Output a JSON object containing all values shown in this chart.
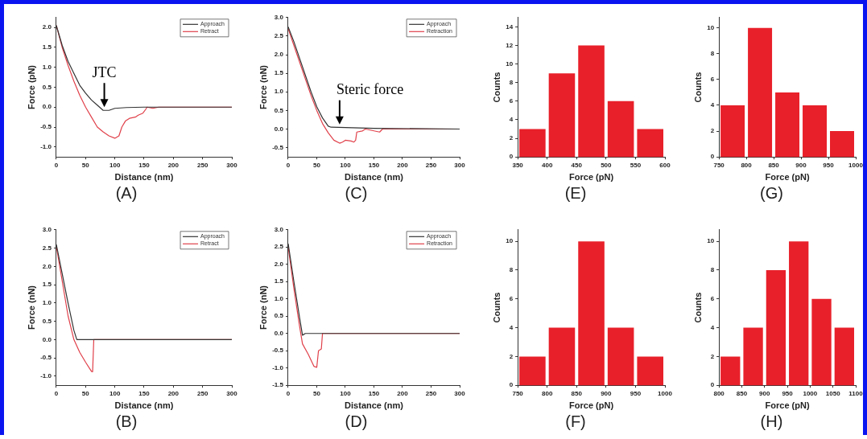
{
  "chart_data": [
    {
      "type": "line",
      "xlabel": "Distance (nm)",
      "ylabel": "Force (pN)",
      "xlim": [
        0,
        300
      ],
      "xticks": [
        0,
        50,
        100,
        150,
        200,
        250,
        300
      ],
      "ylim": [
        -1.25,
        2.25
      ],
      "yticks": [
        {
          "value": -1,
          "label": "-1.0"
        },
        -0.5,
        {
          "value": 0,
          "label": "0.0"
        },
        0.5,
        {
          "value": 1,
          "label": "1.0"
        },
        1.5,
        {
          "value": 2,
          "label": "2.0"
        }
      ],
      "legend": "top right",
      "annotations": [
        "(A)",
        {
          "text": "JTC",
          "x": 82,
          "y": -0.08
        }
      ],
      "series": [
        {
          "name": "Approach",
          "color": "#333333",
          "x": [
            0,
            10,
            20,
            30,
            40,
            50,
            60,
            70,
            80,
            90,
            100,
            120,
            150,
            300
          ],
          "values": [
            2.05,
            1.55,
            1.15,
            0.85,
            0.55,
            0.35,
            0.18,
            0.05,
            -0.08,
            -0.08,
            -0.03,
            -0.01,
            0,
            0
          ]
        },
        {
          "name": "Retract",
          "color": "#e0404a",
          "x": [
            0,
            10,
            20,
            30,
            40,
            50,
            60,
            70,
            80,
            90,
            100,
            107,
            112,
            118,
            125,
            135,
            140,
            148,
            153,
            155,
            165,
            175,
            300
          ],
          "values": [
            2.05,
            1.5,
            1.05,
            0.65,
            0.3,
            0.0,
            -0.25,
            -0.5,
            -0.62,
            -0.72,
            -0.78,
            -0.72,
            -0.5,
            -0.35,
            -0.28,
            -0.25,
            -0.2,
            -0.15,
            -0.05,
            0,
            -0.03,
            0,
            0
          ]
        }
      ]
    },
    {
      "type": "line",
      "xlabel": "Distance (nm)",
      "ylabel": "Force (nN)",
      "xlim": [
        0,
        300
      ],
      "xticks": [
        0,
        50,
        100,
        150,
        200,
        250,
        300
      ],
      "ylim": [
        -0.75,
        3.0
      ],
      "yticks": [
        -0.5,
        {
          "value": 0,
          "label": "0.0"
        },
        0.5,
        {
          "value": 1,
          "label": "1.0"
        },
        1.5,
        {
          "value": 2,
          "label": "2.0"
        },
        2.5,
        {
          "value": 3,
          "label": "3.0"
        }
      ],
      "legend": "top right",
      "annotations": [
        "(C)",
        {
          "text": "Steric force",
          "x": 90,
          "y": 0.04
        }
      ],
      "series": [
        {
          "name": "Approach",
          "color": "#333333",
          "x": [
            0,
            10,
            20,
            30,
            40,
            50,
            60,
            70,
            75,
            100,
            150,
            300
          ],
          "values": [
            2.75,
            2.35,
            1.9,
            1.45,
            1.0,
            0.6,
            0.3,
            0.08,
            0.05,
            0.04,
            0.02,
            0
          ]
        },
        {
          "name": "Retraction",
          "color": "#e0404a",
          "x": [
            0,
            10,
            20,
            30,
            40,
            50,
            60,
            70,
            80,
            90,
            95,
            100,
            110,
            115,
            118,
            120,
            130,
            135,
            160,
            165,
            300
          ],
          "values": [
            2.7,
            2.25,
            1.8,
            1.35,
            0.9,
            0.5,
            0.15,
            -0.1,
            -0.3,
            -0.38,
            -0.35,
            -0.3,
            -0.32,
            -0.35,
            -0.3,
            -0.08,
            -0.05,
            0,
            -0.08,
            0,
            0
          ]
        }
      ]
    },
    {
      "type": "histogram",
      "xlabel": "Force (pN)",
      "ylabel": "Counts",
      "xlim": [
        350,
        600
      ],
      "xticks": [
        350,
        400,
        450,
        500,
        550,
        600
      ],
      "ylim": [
        0,
        15
      ],
      "yticks": [
        0,
        2,
        4,
        6,
        8,
        10,
        12,
        14
      ],
      "color": "#e8202a",
      "bins": [
        350,
        400,
        450,
        500,
        550,
        600
      ],
      "values": [
        3,
        9,
        12,
        6,
        3
      ],
      "annotations": [
        "(E)"
      ]
    },
    {
      "type": "histogram",
      "xlabel": "Force (pN)",
      "ylabel": "Counts",
      "xlim": [
        750,
        1000
      ],
      "xticks": [
        750,
        800,
        850,
        900,
        950,
        1000
      ],
      "ylim": [
        0,
        10.8
      ],
      "yticks": [
        0,
        2,
        4,
        6,
        8,
        10
      ],
      "color": "#e8202a",
      "bins": [
        750,
        800,
        850,
        900,
        950,
        1000
      ],
      "values": [
        4,
        10,
        5,
        4,
        2
      ],
      "annotations": [
        "(G)"
      ]
    },
    {
      "type": "line",
      "xlabel": "Distance (nm)",
      "ylabel": "Force (nN)",
      "xlim": [
        0,
        300
      ],
      "xticks": [
        0,
        50,
        100,
        150,
        200,
        250,
        300
      ],
      "ylim": [
        -1.25,
        3.0
      ],
      "yticks": [
        {
          "value": -1,
          "label": "-1.0"
        },
        -0.5,
        {
          "value": 0,
          "label": "0.0"
        },
        0.5,
        {
          "value": 1,
          "label": "1.0"
        },
        1.5,
        {
          "value": 2,
          "label": "2.0"
        },
        2.5,
        {
          "value": 3,
          "label": "3.0"
        }
      ],
      "legend": "top right",
      "annotations": [
        "(B)"
      ],
      "series": [
        {
          "name": "Approach",
          "color": "#333333",
          "x": [
            0,
            10,
            20,
            30,
            35,
            300
          ],
          "values": [
            2.6,
            1.8,
            1.0,
            0.25,
            0,
            0
          ]
        },
        {
          "name": "Retract",
          "color": "#e0404a",
          "x": [
            0,
            10,
            20,
            30,
            40,
            50,
            60,
            62,
            64,
            300
          ],
          "values": [
            2.55,
            1.6,
            0.65,
            0.0,
            -0.35,
            -0.62,
            -0.87,
            -0.88,
            0.0,
            0
          ]
        }
      ]
    },
    {
      "type": "line",
      "xlabel": "Distance (nm)",
      "ylabel": "Force (nN)",
      "xlim": [
        0,
        300
      ],
      "xticks": [
        0,
        50,
        100,
        150,
        200,
        250,
        300
      ],
      "ylim": [
        -1.5,
        3.0
      ],
      "yticks": [
        -1.5,
        {
          "value": -1,
          "label": "-1.0"
        },
        -0.5,
        {
          "value": 0,
          "label": "0.0"
        },
        0.5,
        {
          "value": 1,
          "label": "1.0"
        },
        1.5,
        {
          "value": 2,
          "label": "2.0"
        },
        2.5,
        {
          "value": 3,
          "label": "3.0"
        }
      ],
      "legend": "top right",
      "annotations": [
        "(D)"
      ],
      "series": [
        {
          "name": "Approach",
          "color": "#333333",
          "x": [
            0,
            10,
            20,
            25,
            30,
            300
          ],
          "values": [
            2.6,
            1.5,
            0.45,
            -0.05,
            0,
            0
          ]
        },
        {
          "name": "Retraction",
          "color": "#e0404a",
          "x": [
            0,
            10,
            20,
            25,
            35,
            45,
            50,
            53,
            58,
            60,
            300
          ],
          "values": [
            2.5,
            1.3,
            0.2,
            -0.3,
            -0.6,
            -0.95,
            -0.98,
            -0.5,
            -0.45,
            0,
            0
          ]
        }
      ]
    },
    {
      "type": "histogram",
      "xlabel": "Force (pN)",
      "ylabel": "Counts",
      "xlim": [
        750,
        1000
      ],
      "xticks": [
        750,
        800,
        850,
        900,
        950,
        1000
      ],
      "ylim": [
        0,
        10.8
      ],
      "yticks": [
        0,
        2,
        4,
        6,
        8,
        10
      ],
      "color": "#e8202a",
      "bins": [
        750,
        800,
        850,
        900,
        950,
        1000
      ],
      "values": [
        2,
        4,
        10,
        4,
        2
      ],
      "annotations": [
        "(F)"
      ]
    },
    {
      "type": "histogram",
      "xlabel": "Force (pN)",
      "ylabel": "Counts",
      "xlim": [
        800,
        1100
      ],
      "xticks": [
        800,
        850,
        900,
        950,
        1000,
        1050,
        1100
      ],
      "ylim": [
        0,
        10.8
      ],
      "yticks": [
        0,
        2,
        4,
        6,
        8,
        10
      ],
      "color": "#e8202a",
      "bins": [
        800,
        850,
        900,
        950,
        1000,
        1050,
        1100
      ],
      "values": [
        2,
        4,
        8,
        10,
        6,
        4
      ],
      "annotations": [
        "(H)"
      ]
    }
  ]
}
